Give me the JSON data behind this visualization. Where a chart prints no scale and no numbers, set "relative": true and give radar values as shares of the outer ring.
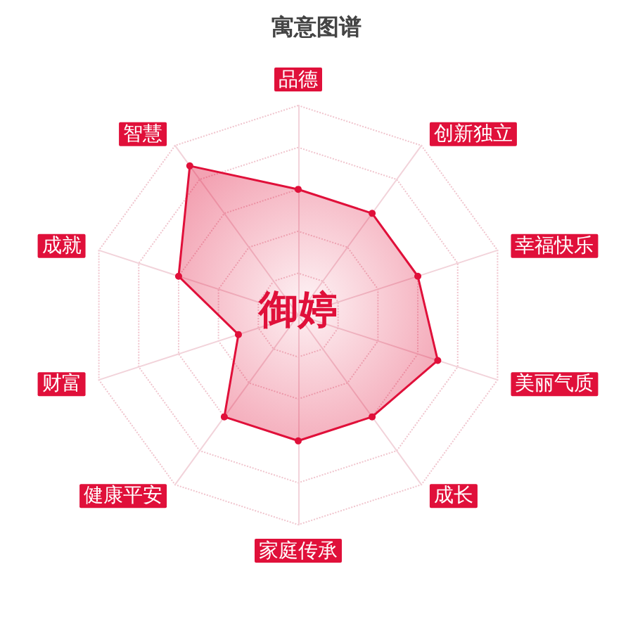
{
  "chart_data": {
    "type": "radar",
    "title": "寓意图谱",
    "annotations": [
      "御婷"
    ],
    "categories": [
      "品德",
      "创新独立",
      "幸福快乐",
      "美丽气质",
      "成长",
      "家庭传承",
      "健康平安",
      "财富",
      "成就",
      "智慧"
    ],
    "relative": true,
    "grid": true,
    "marker": "circle",
    "series": [
      {
        "color": "#e0103a",
        "values": [
          0.6,
          0.6,
          0.6,
          0.7,
          0.6,
          0.6,
          0.6,
          0.3,
          0.6,
          0.88
        ]
      }
    ]
  }
}
